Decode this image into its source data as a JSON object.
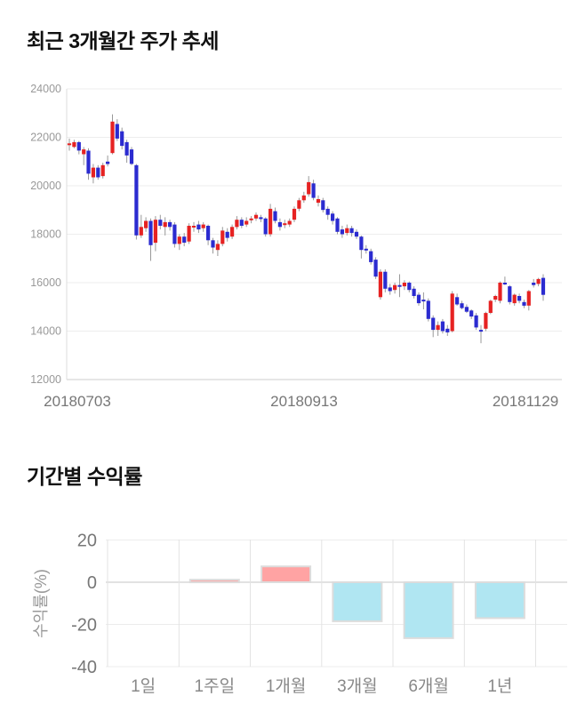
{
  "page": {
    "background": "#ffffff"
  },
  "chart_data": [
    {
      "id": "price",
      "type": "candlestick",
      "title": "최근 3개월간 주가 추세",
      "ylim": [
        12000,
        24000
      ],
      "y_ticks": [
        24000,
        22000,
        20000,
        18000,
        16000,
        14000,
        12000
      ],
      "x_tick_labels": [
        "20180703",
        "20180913",
        "20181129"
      ],
      "grid": true,
      "colors": {
        "up": "#e62222",
        "down": "#2b2bd0",
        "wick": "#999999",
        "grid": "#ededed",
        "axis_bottom": "#cccccc",
        "axis_left": "#dddddd",
        "y_tick_text": "#999999",
        "x_tick_text": "#777777"
      },
      "candles": [
        [
          21700,
          21950,
          21450,
          21750
        ],
        [
          21600,
          21900,
          21550,
          21800
        ],
        [
          21800,
          21850,
          21300,
          21450
        ],
        [
          21300,
          21600,
          20850,
          21500
        ],
        [
          21450,
          21550,
          20250,
          20500
        ],
        [
          20350,
          20900,
          20100,
          20750
        ],
        [
          20750,
          20850,
          20250,
          20350
        ],
        [
          20400,
          20950,
          20300,
          20850
        ],
        [
          21000,
          21250,
          20800,
          20900
        ],
        [
          21350,
          22950,
          21300,
          22650
        ],
        [
          22550,
          22750,
          21850,
          21950
        ],
        [
          22250,
          22400,
          21500,
          21650
        ],
        [
          21800,
          21900,
          20950,
          21250
        ],
        [
          21500,
          21600,
          20850,
          20900
        ],
        [
          20850,
          20900,
          17780,
          17950
        ],
        [
          17950,
          18800,
          17850,
          18300
        ],
        [
          18250,
          18700,
          18100,
          18550
        ],
        [
          18550,
          18650,
          16900,
          17550
        ],
        [
          17650,
          18750,
          17300,
          18600
        ],
        [
          18600,
          18800,
          18200,
          18350
        ],
        [
          18300,
          18700,
          17950,
          18500
        ],
        [
          18500,
          18600,
          18150,
          18300
        ],
        [
          18400,
          18500,
          17450,
          17600
        ],
        [
          17600,
          18000,
          17350,
          17900
        ],
        [
          17900,
          18050,
          17500,
          17650
        ],
        [
          17700,
          18450,
          17600,
          18350
        ],
        [
          18300,
          18500,
          18100,
          18350
        ],
        [
          18400,
          18550,
          18050,
          18200
        ],
        [
          18250,
          18500,
          18100,
          18400
        ],
        [
          18350,
          18400,
          17550,
          17750
        ],
        [
          17750,
          17850,
          17200,
          17450
        ],
        [
          17350,
          17750,
          17100,
          17600
        ],
        [
          17600,
          18300,
          17500,
          18150
        ],
        [
          18100,
          18250,
          17700,
          17850
        ],
        [
          17900,
          18400,
          17800,
          18300
        ],
        [
          18300,
          18750,
          18200,
          18600
        ],
        [
          18600,
          18700,
          18250,
          18350
        ],
        [
          18400,
          18700,
          18300,
          18550
        ],
        [
          18600,
          18750,
          18450,
          18650
        ],
        [
          18650,
          18900,
          18550,
          18800
        ],
        [
          18700,
          18800,
          18500,
          18650
        ],
        [
          18650,
          18700,
          17900,
          18000
        ],
        [
          18000,
          19250,
          17900,
          19050
        ],
        [
          18950,
          19100,
          18450,
          18550
        ],
        [
          18500,
          18650,
          18150,
          18300
        ],
        [
          18400,
          18600,
          18250,
          18450
        ],
        [
          18400,
          18650,
          18300,
          18550
        ],
        [
          18600,
          19150,
          18500,
          19050
        ],
        [
          19050,
          19500,
          18950,
          19400
        ],
        [
          19400,
          19750,
          19300,
          19600
        ],
        [
          19650,
          20400,
          19550,
          20150
        ],
        [
          20100,
          20250,
          19400,
          19500
        ],
        [
          19300,
          19600,
          19150,
          19450
        ],
        [
          19400,
          19500,
          18900,
          19000
        ],
        [
          19050,
          19150,
          18600,
          18800
        ],
        [
          18850,
          18950,
          18400,
          18550
        ],
        [
          18650,
          18700,
          18000,
          18100
        ],
        [
          18200,
          18350,
          17850,
          18000
        ],
        [
          18050,
          18400,
          17950,
          18250
        ],
        [
          18250,
          18350,
          17900,
          18050
        ],
        [
          18100,
          18200,
          17800,
          17900
        ],
        [
          17900,
          17950,
          17000,
          17350
        ],
        [
          17400,
          17550,
          17200,
          17350
        ],
        [
          17300,
          17400,
          16750,
          16850
        ],
        [
          16950,
          17050,
          16150,
          16250
        ],
        [
          15400,
          16550,
          15300,
          16450
        ],
        [
          16450,
          16550,
          15600,
          15750
        ],
        [
          15800,
          15950,
          15500,
          15650
        ],
        [
          15700,
          16000,
          15550,
          15900
        ],
        [
          15900,
          16350,
          15400,
          15850
        ],
        [
          15850,
          16100,
          15700,
          16000
        ],
        [
          16000,
          16050,
          15600,
          15700
        ],
        [
          15750,
          15850,
          15350,
          15450
        ],
        [
          15500,
          15600,
          15050,
          15150
        ],
        [
          15300,
          15600,
          14900,
          15250
        ],
        [
          15250,
          15350,
          14400,
          14500
        ],
        [
          14550,
          14650,
          13750,
          14050
        ],
        [
          14050,
          14400,
          13800,
          14250
        ],
        [
          14400,
          14500,
          13900,
          14000
        ],
        [
          14100,
          14250,
          13800,
          13950
        ],
        [
          14000,
          15650,
          13950,
          15550
        ],
        [
          15400,
          15550,
          15050,
          15100
        ],
        [
          15150,
          15250,
          14900,
          14950
        ],
        [
          15000,
          15100,
          14750,
          14800
        ],
        [
          14850,
          14900,
          14500,
          14600
        ],
        [
          14650,
          14750,
          14050,
          14150
        ],
        [
          14050,
          14250,
          13500,
          14000
        ],
        [
          14100,
          14800,
          14000,
          14750
        ],
        [
          14750,
          15300,
          14700,
          15250
        ],
        [
          15300,
          15500,
          15200,
          15450
        ],
        [
          15250,
          16050,
          15150,
          16000
        ],
        [
          16000,
          16250,
          15900,
          15950
        ],
        [
          15850,
          15900,
          15100,
          15200
        ],
        [
          15150,
          15550,
          15050,
          15500
        ],
        [
          15450,
          15550,
          15150,
          15250
        ],
        [
          15200,
          15300,
          14950,
          15050
        ],
        [
          15050,
          15700,
          14850,
          15650
        ],
        [
          16000,
          16150,
          15800,
          15900
        ],
        [
          15950,
          16200,
          15850,
          16150
        ],
        [
          16200,
          16350,
          15250,
          15500
        ]
      ]
    },
    {
      "id": "returns",
      "type": "bar",
      "title": "기간별 수익률",
      "ylabel": "수익률(%)",
      "ylim": [
        -40,
        20
      ],
      "y_ticks": [
        20,
        0,
        -20,
        -40
      ],
      "categories": [
        "1일",
        "1주일",
        "1개월",
        "3개월",
        "6개월",
        "1년"
      ],
      "values": [
        0,
        1.2,
        7.5,
        -18.5,
        -26.5,
        -17
      ],
      "grid": true,
      "colors": {
        "pos": "#ffa3a3",
        "neg": "#b0e6f2",
        "bar_stroke": "#dcdcdc",
        "grid_v": "#e3e3e3",
        "grid_h": "#ececec",
        "zero_line": "#c6c6c6",
        "y_tick_text": "#777777",
        "cat_text": "#888888",
        "ylabel_text": "#999999"
      }
    }
  ]
}
